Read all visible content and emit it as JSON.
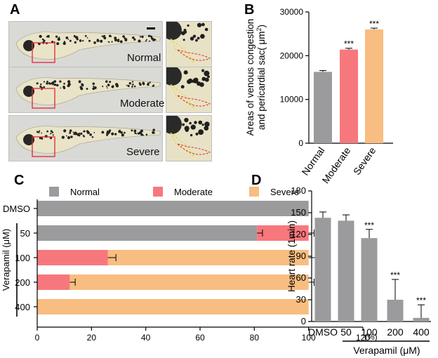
{
  "panel_letters": {
    "a": "A",
    "b": "B",
    "c": "C",
    "d": "D"
  },
  "panel_a": {
    "row_labels": [
      "Normal",
      "Moderate",
      "Severe"
    ]
  },
  "colors": {
    "normal": "#9b9b9d",
    "moderate": "#f7787c",
    "severe": "#f8bd80"
  },
  "chart_data": [
    {
      "panel": "B",
      "type": "bar",
      "categories": [
        "Normal",
        "Moderate",
        "Severe"
      ],
      "values": [
        16300,
        21400,
        26000
      ],
      "errors": [
        300,
        300,
        300
      ],
      "significance": [
        "",
        "***",
        "***"
      ],
      "ylabel_line1": "Areas of venous congestion",
      "ylabel_line2_prefix": "and pericardial sac",
      "ylabel_line2_unit": "( μm",
      "ylabel_line2_sup": "2",
      "ylabel_line2_close": ")",
      "ylim": [
        0,
        30000
      ],
      "yticks": [
        "0",
        "10000",
        "20000",
        "30000"
      ]
    },
    {
      "panel": "C",
      "type": "bar",
      "orientation": "horizontal-stacked",
      "legend": [
        "Normal",
        "Moderate",
        "Severe"
      ],
      "categories": [
        "DMSO",
        "50",
        "100",
        "200",
        "400"
      ],
      "series": [
        {
          "name": "Normal",
          "values": [
            100,
            81,
            0,
            0,
            0
          ]
        },
        {
          "name": "Moderate",
          "values": [
            0,
            19,
            26,
            12,
            0
          ]
        },
        {
          "name": "Severe",
          "values": [
            0,
            0,
            74,
            88,
            100
          ]
        }
      ],
      "errors": [
        0,
        2,
        3,
        2,
        0
      ],
      "group_label": "Verapamil (μM)",
      "xlim": [
        0,
        120
      ],
      "xticks": [
        "0",
        "20",
        "40",
        "60",
        "80",
        "100",
        "120"
      ],
      "x_unit": "(%)"
    },
    {
      "panel": "D",
      "type": "bar",
      "categories": [
        "DMSO",
        "50",
        "100",
        "200",
        "400"
      ],
      "values": [
        143,
        139,
        115,
        30,
        5
      ],
      "errors": [
        8,
        8,
        12,
        28,
        18
      ],
      "significance": [
        "",
        "",
        "***",
        "***",
        "***"
      ],
      "ylabel": "Heart rate (1min)",
      "ylim": [
        0,
        180
      ],
      "yticks": [
        "0",
        "30",
        "60",
        "90",
        "120",
        "150",
        "180"
      ],
      "group_label": "Verapamil (μM)"
    }
  ]
}
